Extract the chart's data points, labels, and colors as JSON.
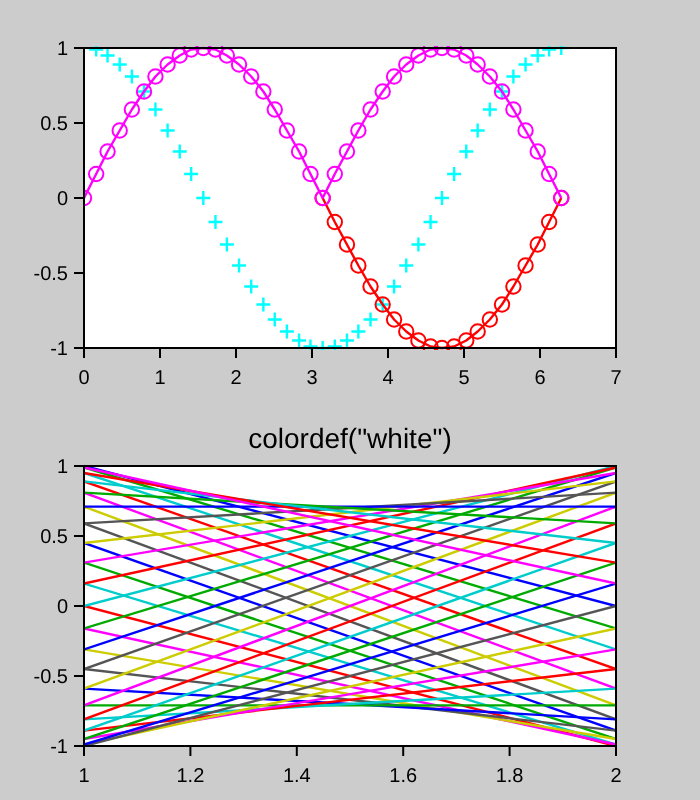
{
  "chart_data": [
    {
      "type": "line",
      "x": [
        0,
        0.16,
        0.31,
        0.47,
        0.63,
        0.79,
        0.94,
        1.1,
        1.26,
        1.41,
        1.57,
        1.73,
        1.88,
        2.04,
        2.2,
        2.36,
        2.51,
        2.67,
        2.83,
        2.98,
        3.14,
        3.3,
        3.46,
        3.61,
        3.77,
        3.93,
        4.08,
        4.24,
        4.4,
        4.56,
        4.71,
        4.87,
        5.03,
        5.18,
        5.34,
        5.5,
        5.65,
        5.81,
        5.97,
        6.12,
        6.28
      ],
      "xlim": [
        0,
        7
      ],
      "xticks": [
        0,
        1,
        2,
        3,
        4,
        5,
        6,
        7
      ],
      "ylim": [
        -1,
        1
      ],
      "yticks": [
        -1,
        -0.5,
        0,
        0.5,
        1
      ],
      "marker": "circle",
      "series": [
        {
          "type": "scatter",
          "marker": "cross",
          "color": "#00ffff",
          "values": [
            null,
            0.99,
            0.95,
            0.89,
            0.81,
            0.71,
            0.59,
            0.45,
            0.31,
            0.16,
            0,
            -0.16,
            -0.31,
            -0.45,
            -0.59,
            -0.71,
            -0.81,
            -0.89,
            -0.95,
            -0.99,
            -1,
            -0.99,
            -0.95,
            -0.89,
            -0.81,
            -0.71,
            -0.59,
            -0.45,
            -0.31,
            -0.16,
            0,
            0.16,
            0.31,
            0.45,
            0.59,
            0.71,
            0.81,
            0.89,
            0.95,
            0.99,
            1
          ]
        },
        {
          "color": "#ff0000",
          "x": [
            3.14,
            3.3,
            3.46,
            3.61,
            3.77,
            3.93,
            4.08,
            4.24,
            4.4,
            4.56,
            4.71,
            4.87,
            5.03,
            5.18,
            5.34,
            5.5,
            5.65,
            5.81,
            5.97,
            6.12,
            6.28
          ],
          "values": [
            0,
            -0.16,
            -0.31,
            -0.45,
            -0.59,
            -0.71,
            -0.81,
            -0.89,
            -0.95,
            -0.99,
            -1,
            -0.99,
            -0.95,
            -0.89,
            -0.81,
            -0.71,
            -0.59,
            -0.45,
            -0.31,
            -0.16,
            0
          ]
        },
        {
          "color": "#ff00ff",
          "values": [
            0,
            0.16,
            0.31,
            0.45,
            0.59,
            0.71,
            0.81,
            0.89,
            0.95,
            0.99,
            1,
            0.99,
            0.95,
            0.89,
            0.81,
            0.71,
            0.59,
            0.45,
            0.31,
            0.16,
            0,
            0.16,
            0.31,
            0.45,
            0.59,
            0.71,
            0.81,
            0.89,
            0.95,
            0.99,
            1,
            0.99,
            0.95,
            0.89,
            0.81,
            0.71,
            0.59,
            0.45,
            0.31,
            0.16,
            0
          ]
        }
      ]
    },
    {
      "type": "line",
      "title": "colordef(\"white\")",
      "x": [
        1,
        2
      ],
      "xlim": [
        1,
        2
      ],
      "xticks": [
        1,
        1.2,
        1.4,
        1.6,
        1.8,
        2
      ],
      "ylim": [
        -1,
        1
      ],
      "yticks": [
        -1,
        -0.5,
        0,
        0.5,
        1
      ],
      "series": [
        {
          "color": "#0000ff",
          "values": [
            1,
            0
          ]
        },
        {
          "color": "#00aa00",
          "values": [
            0.99,
            -0.16
          ]
        },
        {
          "color": "#00cccc",
          "values": [
            0.95,
            -0.31
          ]
        },
        {
          "color": "#ff0000",
          "values": [
            0.89,
            -0.45
          ]
        },
        {
          "color": "#ff00ff",
          "values": [
            0.81,
            -0.59
          ]
        },
        {
          "color": "#cccc00",
          "values": [
            0.71,
            -0.71
          ]
        },
        {
          "color": "#555555",
          "values": [
            0.59,
            -0.81
          ]
        },
        {
          "color": "#0000ff",
          "values": [
            0.45,
            -0.89
          ]
        },
        {
          "color": "#00aa00",
          "values": [
            0.31,
            -0.95
          ]
        },
        {
          "color": "#00cccc",
          "values": [
            0.16,
            -0.99
          ]
        },
        {
          "color": "#ff0000",
          "values": [
            0,
            -1
          ]
        },
        {
          "color": "#ff00ff",
          "values": [
            -0.16,
            -0.99
          ]
        },
        {
          "color": "#cccc00",
          "values": [
            -0.31,
            -0.95
          ]
        },
        {
          "color": "#555555",
          "values": [
            -0.45,
            -0.89
          ]
        },
        {
          "color": "#0000ff",
          "values": [
            -0.59,
            -0.81
          ]
        },
        {
          "color": "#00aa00",
          "values": [
            -0.71,
            -0.71
          ]
        },
        {
          "color": "#00cccc",
          "values": [
            -0.81,
            -0.59
          ]
        },
        {
          "color": "#ff0000",
          "values": [
            -0.89,
            -0.45
          ]
        },
        {
          "color": "#ff00ff",
          "values": [
            -0.95,
            -0.31
          ]
        },
        {
          "color": "#cccc00",
          "values": [
            -0.99,
            -0.16
          ]
        },
        {
          "color": "#555555",
          "values": [
            -1,
            0
          ]
        },
        {
          "color": "#0000ff",
          "values": [
            -0.99,
            0.16
          ]
        },
        {
          "color": "#00aa00",
          "values": [
            -0.95,
            0.31
          ]
        },
        {
          "color": "#00cccc",
          "values": [
            -0.89,
            0.45
          ]
        },
        {
          "color": "#ff0000",
          "values": [
            -0.81,
            0.59
          ]
        },
        {
          "color": "#ff00ff",
          "values": [
            -0.71,
            0.71
          ]
        },
        {
          "color": "#cccc00",
          "values": [
            -0.59,
            0.81
          ]
        },
        {
          "color": "#555555",
          "values": [
            -0.45,
            0.89
          ]
        },
        {
          "color": "#0000ff",
          "values": [
            -0.31,
            0.95
          ]
        },
        {
          "color": "#00aa00",
          "values": [
            -0.16,
            0.99
          ]
        },
        {
          "color": "#00cccc",
          "values": [
            0,
            1
          ]
        },
        {
          "color": "#ff0000",
          "values": [
            0.16,
            0.99
          ]
        },
        {
          "color": "#ff00ff",
          "values": [
            0.31,
            0.95
          ]
        },
        {
          "color": "#cccc00",
          "values": [
            0.45,
            0.89
          ]
        },
        {
          "color": "#555555",
          "values": [
            0.59,
            0.81
          ]
        },
        {
          "color": "#0000ff",
          "values": [
            0.71,
            0.71
          ]
        },
        {
          "color": "#00aa00",
          "values": [
            0.81,
            0.59
          ]
        },
        {
          "color": "#00cccc",
          "values": [
            0.89,
            0.45
          ]
        },
        {
          "color": "#ff0000",
          "values": [
            0.95,
            0.31
          ]
        },
        {
          "color": "#ff00ff",
          "values": [
            0.99,
            0.16
          ]
        }
      ]
    }
  ]
}
